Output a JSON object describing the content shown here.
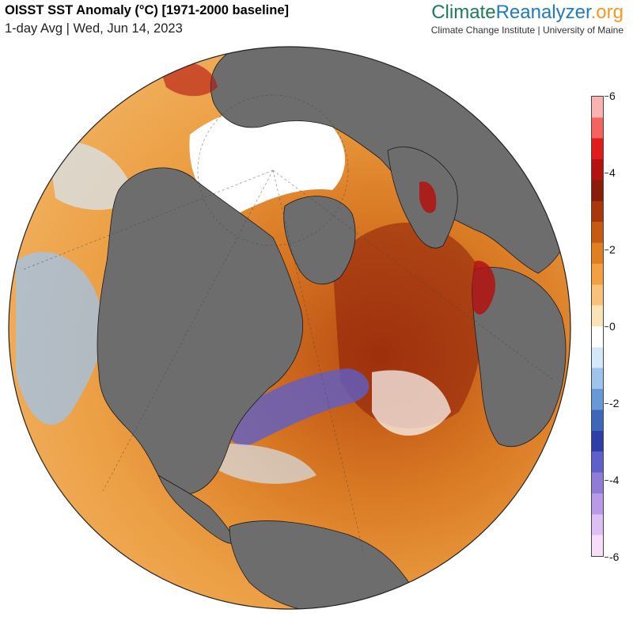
{
  "header": {
    "title": "OISST SST Anomaly (°C) [1971-2000 baseline]",
    "subtitle": "1-day Avg | Wed, Jun 14, 2023"
  },
  "brand": {
    "name_part1": "Climate",
    "name_part2": "Reanalyzer",
    "name_part3": ".org",
    "tagline": "Climate Change Institute | University of Maine"
  },
  "colorbar": {
    "min": -6,
    "max": 6,
    "ticks": [
      {
        "value": 6,
        "label": "6"
      },
      {
        "value": 4,
        "label": "4"
      },
      {
        "value": 2,
        "label": "2"
      },
      {
        "value": 0,
        "label": "0"
      },
      {
        "value": -2,
        "label": "-2"
      },
      {
        "value": -4,
        "label": "-4"
      },
      {
        "value": -6,
        "label": "-6"
      }
    ],
    "colors": [
      "#f7ddf9",
      "#dcc0f3",
      "#b89ae6",
      "#8f7cd6",
      "#5e5fc8",
      "#2e3ea6",
      "#3e67b8",
      "#6a98d6",
      "#9fc4ec",
      "#d5e8f9",
      "#ffffff",
      "#fbe3b8",
      "#f8c27a",
      "#f2a042",
      "#e07f20",
      "#c65a12",
      "#a8380c",
      "#8a1c0a",
      "#b31210",
      "#e01b1b",
      "#f3635f",
      "#f9b4b2"
    ]
  },
  "map": {
    "land_color": "#6d6d6d",
    "ice_color": "#ffffff",
    "border_color": "#1a1a1a"
  }
}
